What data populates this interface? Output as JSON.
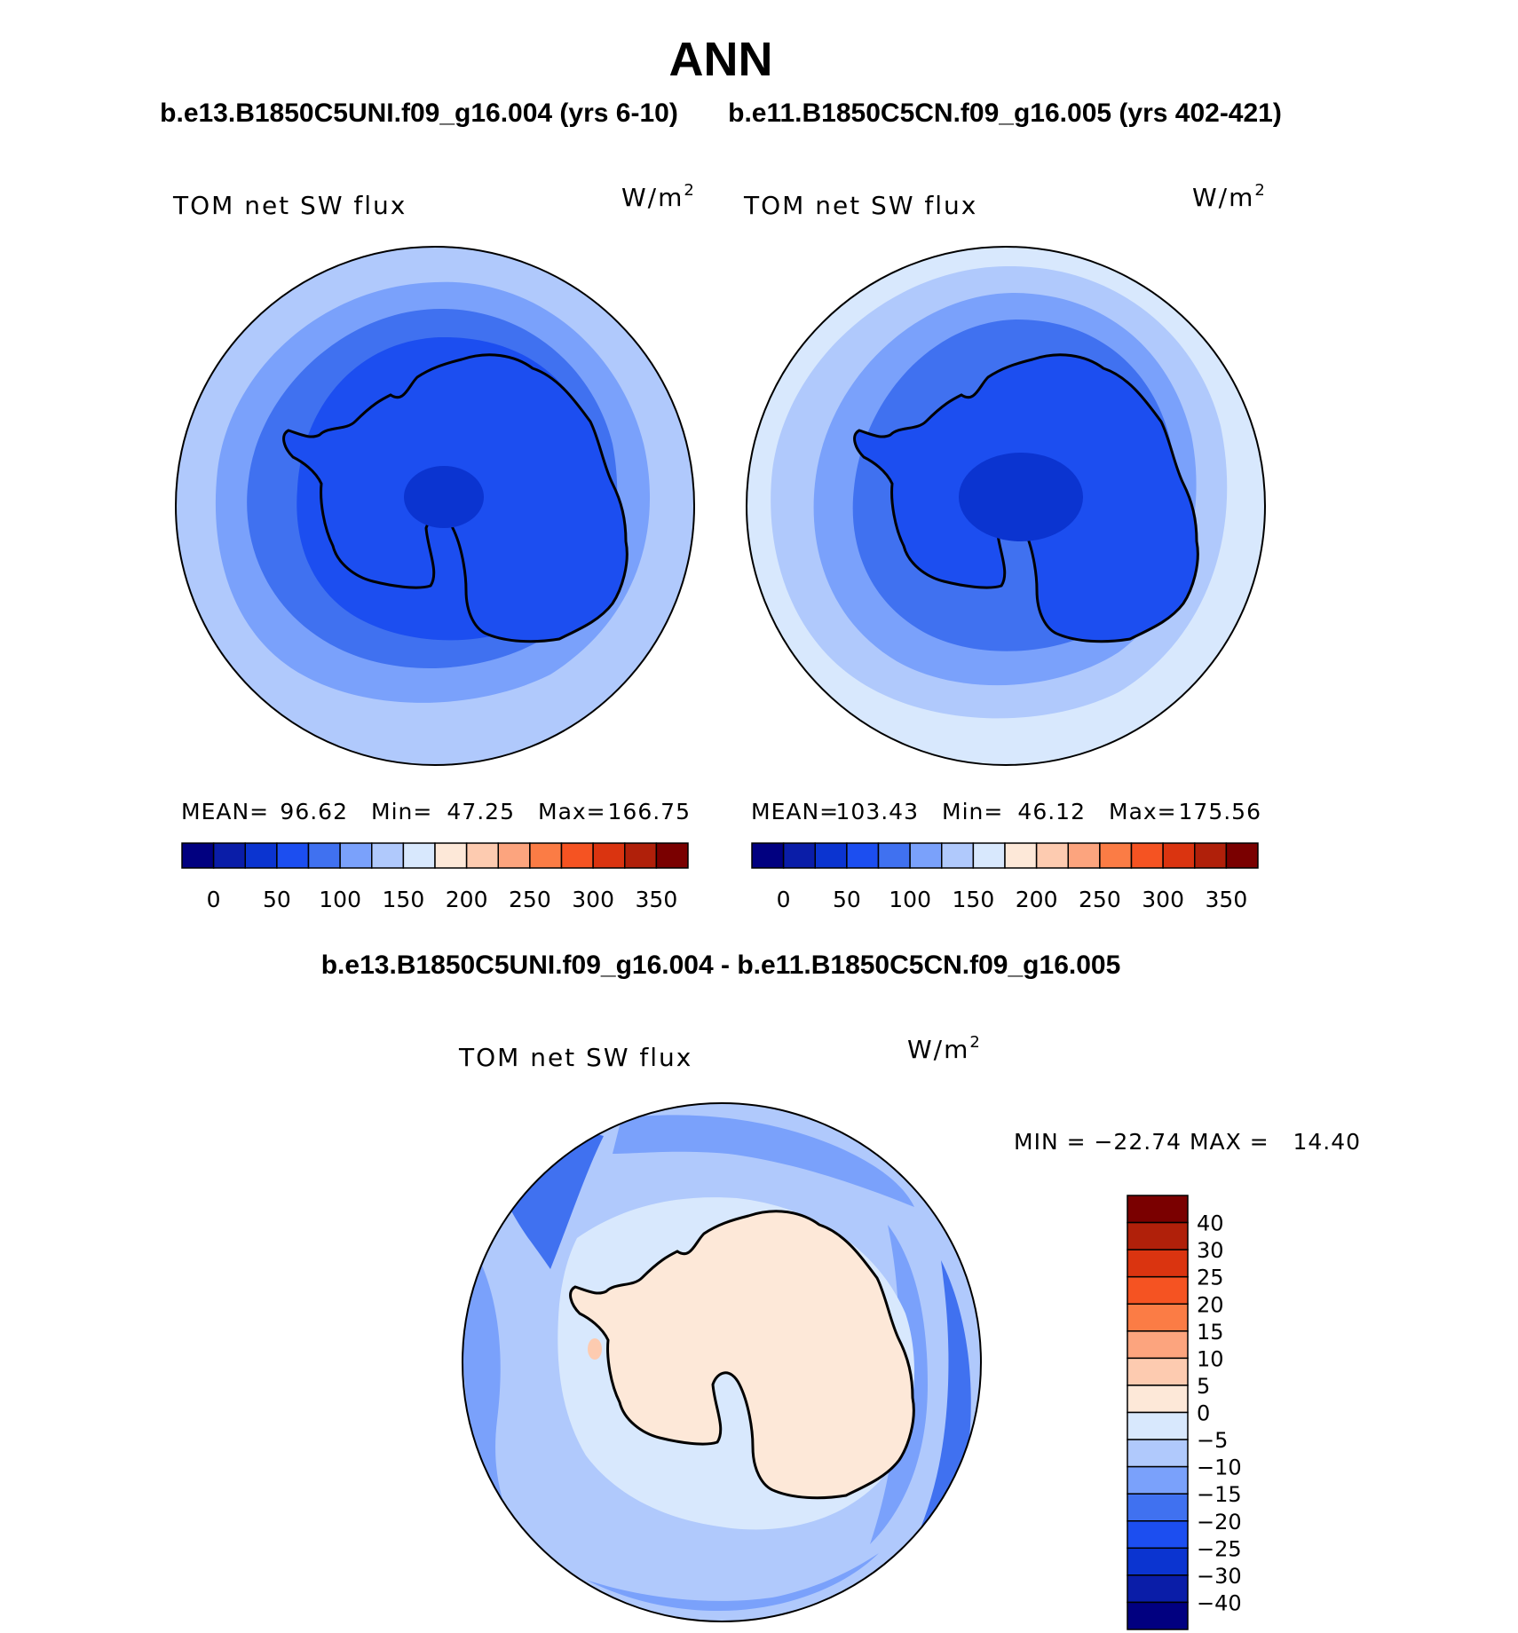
{
  "figure": {
    "title": "ANN",
    "panel_left_case": "b.e13.B1850C5UNI.f09_g16.004 (yrs 6-10)",
    "panel_right_case": "b.e11.B1850C5CN.f09_g16.005 (yrs 402-421)",
    "diff_title": "b.e13.B1850C5UNI.f09_g16.004 - b.e11.B1850C5CN.f09_g16.005"
  },
  "panels": [
    {
      "variable": "TOM net SW flux",
      "units_base": "W/m",
      "units_exp": "2",
      "stats": {
        "mean_label": "MEAN=",
        "mean": "96.62",
        "min_label": "Min=",
        "min": "47.25",
        "max_label": "Max=",
        "max": "166.75"
      },
      "colorbar_ticks": [
        "0",
        "50",
        "100",
        "150",
        "200",
        "250",
        "300",
        "350"
      ]
    },
    {
      "variable": "TOM net SW flux",
      "units_base": "W/m",
      "units_exp": "2",
      "stats": {
        "mean_label": "MEAN=",
        "mean": "103.43",
        "min_label": "Min=",
        "min": "46.12",
        "max_label": "Max=",
        "max": "175.56"
      },
      "colorbar_ticks": [
        "0",
        "50",
        "100",
        "150",
        "200",
        "250",
        "300",
        "350"
      ]
    },
    {
      "variable": "TOM net SW flux",
      "units_base": "W/m",
      "units_exp": "2",
      "minmax": "MIN = −22.74 MAX =   14.40",
      "colorbar_labels": [
        "40",
        "30",
        "25",
        "20",
        "15",
        "10",
        "5",
        "0",
        "−5",
        "−10",
        "−15",
        "−20",
        "−25",
        "−30",
        "−40"
      ]
    }
  ],
  "colorbars": {
    "horizontal_colors": [
      "#010080",
      "#0a1da8",
      "#0b34d0",
      "#1c4ef0",
      "#4071f0",
      "#7aa1fb",
      "#b0c9fc",
      "#d8e8fd",
      "#fde8d8",
      "#fdcbb0",
      "#fca47e",
      "#fb7c45",
      "#f55322",
      "#da3410",
      "#b0200a",
      "#7a0000"
    ],
    "vertical_colors_top_to_bottom": [
      "#7a0000",
      "#b0200a",
      "#da3410",
      "#f55322",
      "#fb7c45",
      "#fca47e",
      "#fdcbb0",
      "#fde8d8",
      "#d8e8fd",
      "#b0c9fc",
      "#7aa1fb",
      "#4071f0",
      "#1c4ef0",
      "#0b34d0",
      "#0a1da8",
      "#010080"
    ]
  },
  "map_colors": {
    "ring_outer": "#b0c9fc",
    "ring_mid": "#7aa1fb",
    "ring_inner": "#4071f0",
    "ring_core": "#1c4ef0",
    "ice_high": "#0b34d0",
    "ring_outer_right": "#d8e8fd",
    "diff_base": "#b0c9fc",
    "diff_light": "#d8e8fd",
    "diff_mid": "#7aa1fb",
    "diff_strong": "#4071f0",
    "diff_land": "#fde8d8",
    "diff_pos": "#fdcbb0",
    "coast": "#000000"
  }
}
